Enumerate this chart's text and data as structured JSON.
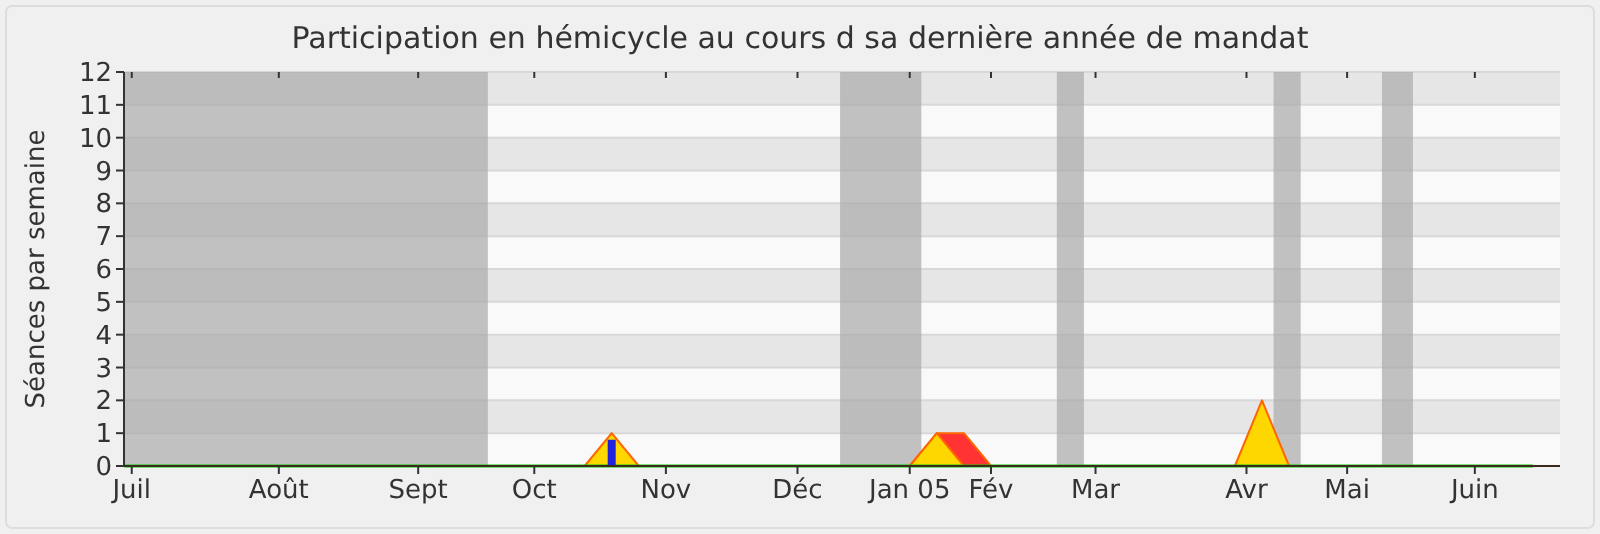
{
  "chart_data": {
    "type": "area",
    "title": "Participation en hémicycle au cours d sa dernière année de mandat",
    "ylabel": "Séances par semaine",
    "x": [
      "2004-07-01",
      "2004-07-08",
      "2004-07-15",
      "2004-07-22",
      "2004-07-29",
      "2004-08-05",
      "2004-08-12",
      "2004-08-19",
      "2004-08-26",
      "2004-09-02",
      "2004-09-09",
      "2004-09-16",
      "2004-09-23",
      "2004-09-30",
      "2004-10-07",
      "2004-10-14",
      "2004-10-21",
      "2004-10-28",
      "2004-11-04",
      "2004-11-11",
      "2004-11-18",
      "2004-11-25",
      "2004-12-02",
      "2004-12-09",
      "2004-12-16",
      "2004-12-23",
      "2004-12-30",
      "2005-01-06",
      "2005-01-13",
      "2005-01-20",
      "2005-01-27",
      "2005-02-03",
      "2005-02-10",
      "2005-02-17",
      "2005-02-24",
      "2005-03-03",
      "2005-03-10",
      "2005-03-17",
      "2005-03-24",
      "2005-03-31",
      "2005-04-07",
      "2005-04-14",
      "2005-04-21",
      "2005-04-28",
      "2005-05-05",
      "2005-05-12",
      "2005-05-19",
      "2005-05-26",
      "2005-06-02",
      "2005-06-09",
      "2005-06-16",
      "2005-06-23",
      "2005-06-30"
    ],
    "xlim": [
      "2004-07-01",
      "2005-07-07"
    ],
    "xticks": [
      {
        "value": "2004-07-03",
        "label": "Juil"
      },
      {
        "value": "2004-08-10",
        "label": "Août"
      },
      {
        "value": "2004-09-15",
        "label": "Sept"
      },
      {
        "value": "2004-10-15",
        "label": "Oct"
      },
      {
        "value": "2004-11-18",
        "label": "Nov"
      },
      {
        "value": "2004-12-22",
        "label": "Déc"
      },
      {
        "value": "2005-01-20",
        "label": "Jan 05"
      },
      {
        "value": "2005-02-10",
        "label": "Fév"
      },
      {
        "value": "2005-03-09",
        "label": "Mar"
      },
      {
        "value": "2005-04-17",
        "label": "Avr"
      },
      {
        "value": "2005-05-13",
        "label": "Mai"
      },
      {
        "value": "2005-06-15",
        "label": "Juin"
      }
    ],
    "ylim": [
      0,
      12
    ],
    "yticks": [
      0,
      1,
      2,
      3,
      4,
      5,
      6,
      7,
      8,
      9,
      10,
      11,
      12
    ],
    "grid": "y",
    "series": [
      {
        "color": "#ff3333",
        "values": [
          0,
          0,
          0,
          0,
          0,
          0,
          0,
          0,
          0,
          0,
          0,
          0,
          0,
          0,
          0,
          0,
          0,
          0,
          0,
          0,
          0,
          0,
          0,
          0,
          0,
          0,
          0,
          0,
          0,
          0,
          1,
          1,
          0,
          0,
          0,
          0,
          0,
          0,
          0,
          0,
          0,
          0,
          0,
          0,
          0,
          0,
          0,
          0,
          0,
          0,
          0,
          0,
          0
        ]
      },
      {
        "color": "#ffd700",
        "values": [
          0,
          0,
          0,
          0,
          0,
          0,
          0,
          0,
          0,
          0,
          0,
          0,
          0,
          0,
          0,
          0,
          0,
          0,
          1,
          0,
          0,
          0,
          0,
          0,
          0,
          0,
          0,
          0,
          0,
          0,
          1,
          0,
          0,
          0,
          0,
          0,
          0,
          0,
          0,
          0,
          0,
          0,
          2,
          0,
          0,
          0,
          0,
          0,
          0,
          0,
          0,
          0,
          0
        ]
      },
      {
        "type": "line",
        "color": "#00cc00",
        "values": [
          0,
          0,
          0,
          0,
          0,
          0,
          0,
          0,
          0,
          0,
          0,
          0,
          0,
          0,
          0,
          0,
          0,
          0,
          0,
          0,
          0,
          0,
          0,
          0,
          0,
          0,
          0,
          0,
          0,
          0,
          0,
          0,
          0,
          0,
          0,
          0,
          0,
          0,
          0,
          0,
          0,
          0,
          0,
          0,
          0,
          0,
          0,
          0,
          0,
          0,
          0,
          0,
          0
        ]
      },
      {
        "type": "bar",
        "color": "#2222dd",
        "values": [
          null,
          null,
          null,
          null,
          null,
          null,
          null,
          null,
          null,
          null,
          null,
          null,
          null,
          null,
          null,
          null,
          null,
          null,
          0.8,
          null,
          null,
          null,
          null,
          null,
          null,
          null,
          null,
          null,
          null,
          null,
          null,
          null,
          null,
          null,
          null,
          null,
          null,
          null,
          null,
          null,
          null,
          null,
          null,
          null,
          null,
          null,
          null,
          null,
          null,
          null,
          null,
          null,
          null
        ]
      }
    ],
    "bands": [
      {
        "axis": "x",
        "from": "2004-07-01",
        "to": "2004-10-03",
        "color": "#aaaaaa"
      },
      {
        "axis": "x",
        "from": "2005-01-02",
        "to": "2005-01-23",
        "color": "#aaaaaa"
      },
      {
        "axis": "x",
        "from": "2005-02-27",
        "to": "2005-03-06",
        "color": "#aaaaaa"
      },
      {
        "axis": "x",
        "from": "2005-04-24",
        "to": "2005-05-01",
        "color": "#aaaaaa"
      },
      {
        "axis": "x",
        "from": "2005-05-22",
        "to": "2005-05-30",
        "color": "#aaaaaa"
      }
    ]
  }
}
